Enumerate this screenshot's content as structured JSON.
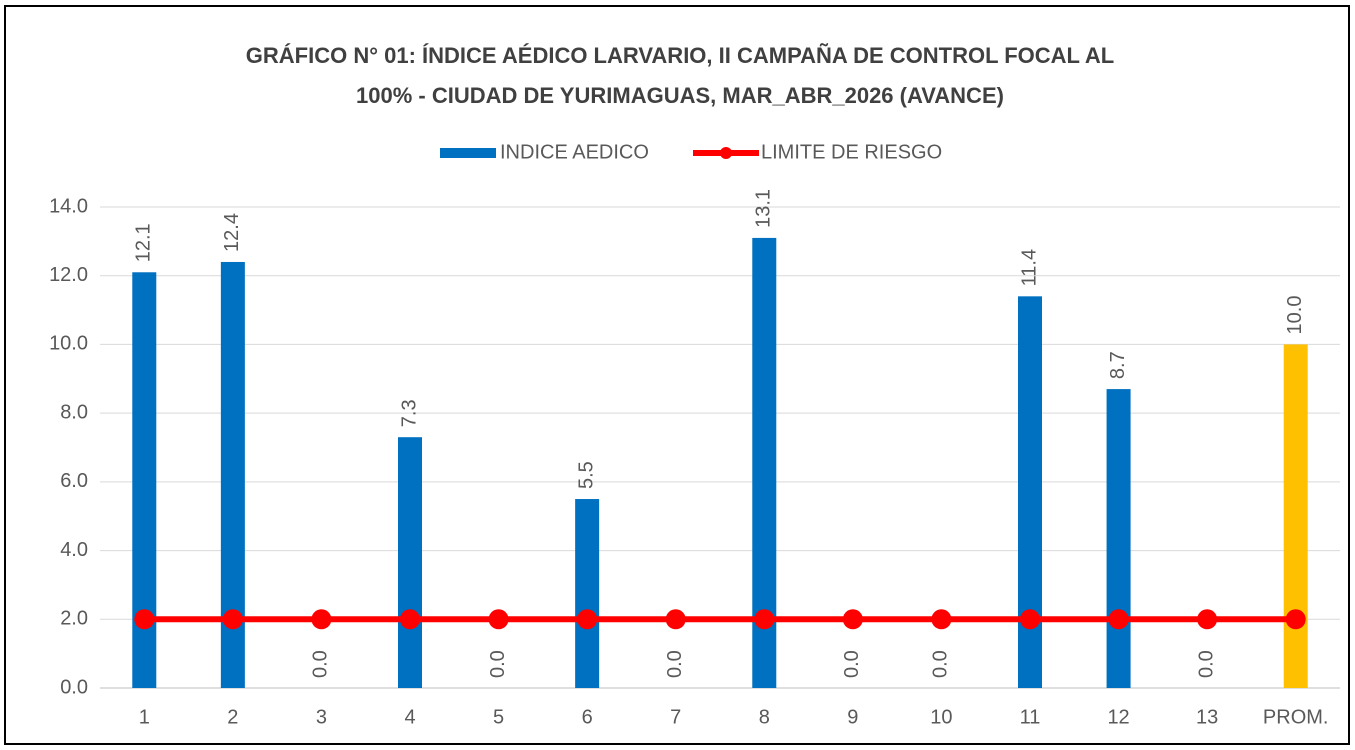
{
  "chart_data": {
    "type": "bar",
    "title": [
      "GRÁFICO N° 01: ÍNDICE AÉDICO LARVARIO, II CAMPAÑA DE CONTROL FOCAL AL",
      "100%  - CIUDAD DE YURIMAGUAS, MAR_ABR_2026 (AVANCE)"
    ],
    "categories": [
      "1",
      "2",
      "3",
      "4",
      "5",
      "6",
      "7",
      "8",
      "9",
      "10",
      "11",
      "12",
      "13",
      "PROM."
    ],
    "series": [
      {
        "name": "INDICE AEDICO",
        "type": "bar",
        "color": "#0070c0",
        "colors": [
          "#0070c0",
          "#0070c0",
          "#0070c0",
          "#0070c0",
          "#0070c0",
          "#0070c0",
          "#0070c0",
          "#0070c0",
          "#0070c0",
          "#0070c0",
          "#0070c0",
          "#0070c0",
          "#0070c0",
          "#ffc000"
        ],
        "values": [
          12.1,
          12.4,
          0,
          7.3,
          0,
          5.5,
          0,
          13.1,
          0,
          0,
          11.4,
          8.7,
          0,
          10
        ],
        "value_labels": [
          "12.1",
          "12.4",
          "0.0",
          "7.3",
          "0.0",
          "5.5",
          "0.0",
          "13.1",
          "0.0",
          "0.0",
          "11.4",
          "8.7",
          "0.0",
          "10.0"
        ]
      },
      {
        "name": "LIMITE DE RIESGO",
        "type": "line",
        "color": "#ff0000",
        "values": [
          2,
          2,
          2,
          2,
          2,
          2,
          2,
          2,
          2,
          2,
          2,
          2,
          2,
          2
        ]
      }
    ],
    "ylim": [
      0,
      14
    ],
    "yticks": [
      {
        "value": 0,
        "label": "0.0"
      },
      {
        "value": 2,
        "label": "2.0"
      },
      {
        "value": 4,
        "label": "4.0"
      },
      {
        "value": 6,
        "label": "6.0"
      },
      {
        "value": 8,
        "label": "8.0"
      },
      {
        "value": 10,
        "label": "10.0"
      },
      {
        "value": 12,
        "label": "12.0"
      },
      {
        "value": 14,
        "label": "14.0"
      }
    ],
    "grid": true,
    "legend": "top"
  }
}
